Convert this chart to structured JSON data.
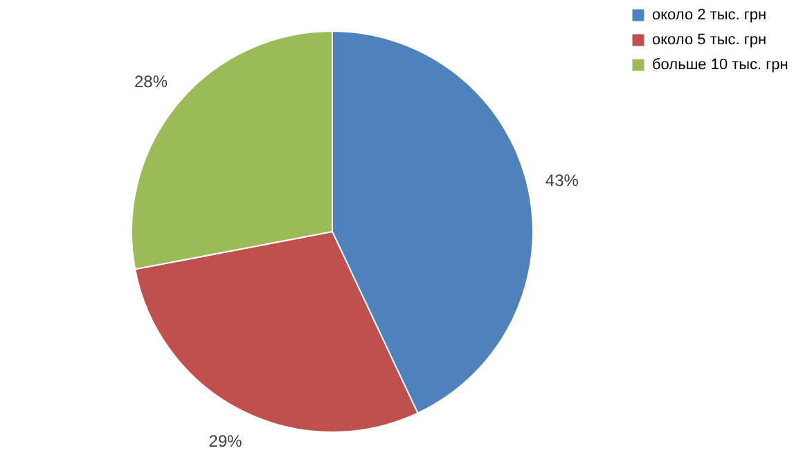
{
  "chart_data": {
    "type": "pie",
    "categories": [
      "около 2 тыс. грн",
      "около 5 тыс. грн",
      "больше 10 тыс. грн"
    ],
    "values": [
      43,
      29,
      28
    ],
    "colors": [
      "#4f81bd",
      "#c0504d",
      "#9bbb59"
    ],
    "value_labels": [
      "43%",
      "29%",
      "28%"
    ],
    "legend": "right"
  }
}
